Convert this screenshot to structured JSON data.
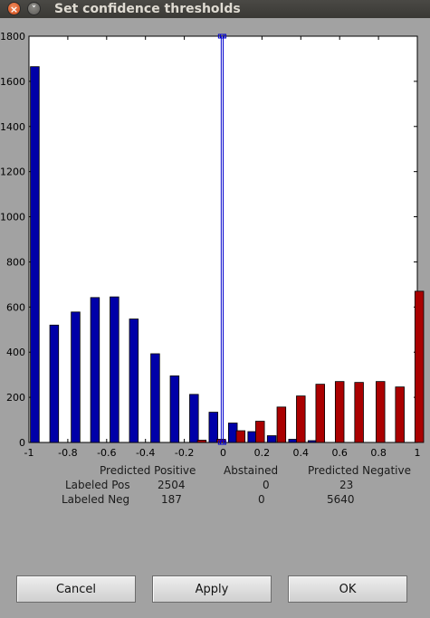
{
  "window": {
    "title": "Set confidence thresholds",
    "close_icon": "close-icon",
    "minimize_icon": "minimize-icon"
  },
  "colors": {
    "positive": "#0000a8",
    "negative": "#aa0000",
    "threshold": "#0000cc"
  },
  "chart_data": {
    "type": "bar",
    "xlim": [
      -1,
      1
    ],
    "ylim": [
      0,
      1800
    ],
    "xticks": [
      -1,
      -0.8,
      -0.6,
      -0.4,
      -0.2,
      0,
      0.2,
      0.4,
      0.6,
      0.8,
      1
    ],
    "xtick_labels": [
      "-1",
      "-0.8",
      "-0.6",
      "-0.4",
      "-0.2",
      "0",
      "0.2",
      "0.4",
      "0.6",
      "0.8",
      "1"
    ],
    "yticks": [
      0,
      200,
      400,
      600,
      800,
      1000,
      1200,
      1400,
      1600,
      1800
    ],
    "ytick_labels": [
      "0",
      "200",
      "400",
      "600",
      "800",
      "1000",
      "1200",
      "1400",
      "1600",
      "1800"
    ],
    "threshold_lines": [
      -0.01,
      0.0
    ],
    "series": [
      {
        "x": [
          -0.97,
          -0.87,
          -0.76,
          -0.66,
          -0.56,
          -0.46,
          -0.35,
          -0.25,
          -0.15,
          -0.05,
          0.05,
          0.15,
          0.25,
          0.36,
          0.46,
          0.56,
          0.66,
          0.76,
          0.87,
          0.97
        ],
        "values": [
          1665,
          520,
          578,
          642,
          645,
          547,
          393,
          295,
          213,
          134,
          86,
          48,
          30,
          14,
          8,
          0,
          0,
          0,
          0,
          0
        ]
      },
      {
        "x": [
          -0.93,
          -0.83,
          -0.72,
          -0.62,
          -0.52,
          -0.42,
          -0.31,
          -0.21,
          -0.11,
          -0.01,
          0.09,
          0.19,
          0.3,
          0.4,
          0.5,
          0.6,
          0.7,
          0.81,
          0.91,
          1.01
        ],
        "values": [
          0,
          0,
          0,
          0,
          0,
          0,
          0,
          0,
          10,
          14,
          52,
          94,
          157,
          206,
          258,
          270,
          266,
          270,
          246,
          670
        ]
      }
    ]
  },
  "stats": {
    "headers": [
      "Predicted Positive",
      "Abstained",
      "Predicted Negative"
    ],
    "rows": [
      {
        "label": "Labeled Pos",
        "values": [
          "2504",
          "0",
          "23"
        ]
      },
      {
        "label": "Labeled Neg",
        "values": [
          "187",
          "0",
          "5640"
        ]
      }
    ]
  },
  "buttons": {
    "cancel": "Cancel",
    "apply": "Apply",
    "ok": "OK"
  }
}
